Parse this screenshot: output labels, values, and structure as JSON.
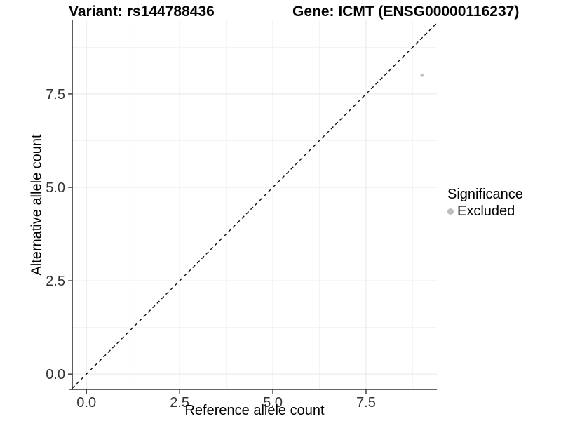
{
  "header": {
    "variant_title": "Variant: rs144788436",
    "gene_title": "Gene: ICMT (ENSG00000116237)"
  },
  "legend": {
    "title": "Significance",
    "items": [
      {
        "label": "Excluded",
        "color": "#bebebe"
      }
    ]
  },
  "colors": {
    "point": "#bebebe",
    "grid_major": "#e7e7e7",
    "grid_minor": "#f3f3f3",
    "axis_line": "#333333",
    "tick_text": "#333333",
    "reference_line": "#111111"
  },
  "chart_data": {
    "type": "scatter",
    "title": "Variant: rs144788436 / Gene: ICMT (ENSG00000116237)",
    "xlabel": "Reference allele count",
    "ylabel": "Alternative allele count",
    "xlim": [
      -0.38,
      9.4
    ],
    "ylim": [
      -0.41,
      9.49
    ],
    "x_ticks": [
      0,
      2.5,
      5,
      7.5
    ],
    "x_tick_labels": [
      "0.0",
      "2.5",
      "5.0",
      "7.5"
    ],
    "y_ticks": [
      0,
      2.5,
      5,
      7.5
    ],
    "y_tick_labels": [
      "0.0",
      "2.5",
      "5.0",
      "7.5"
    ],
    "grid": "major+minor",
    "legend_position": "right",
    "series": [
      {
        "name": "Excluded",
        "color": "#bebebe",
        "points": [
          [
            9,
            8
          ]
        ]
      }
    ],
    "reference_line": {
      "slope": 1,
      "intercept": 0,
      "style": "dashed"
    }
  }
}
